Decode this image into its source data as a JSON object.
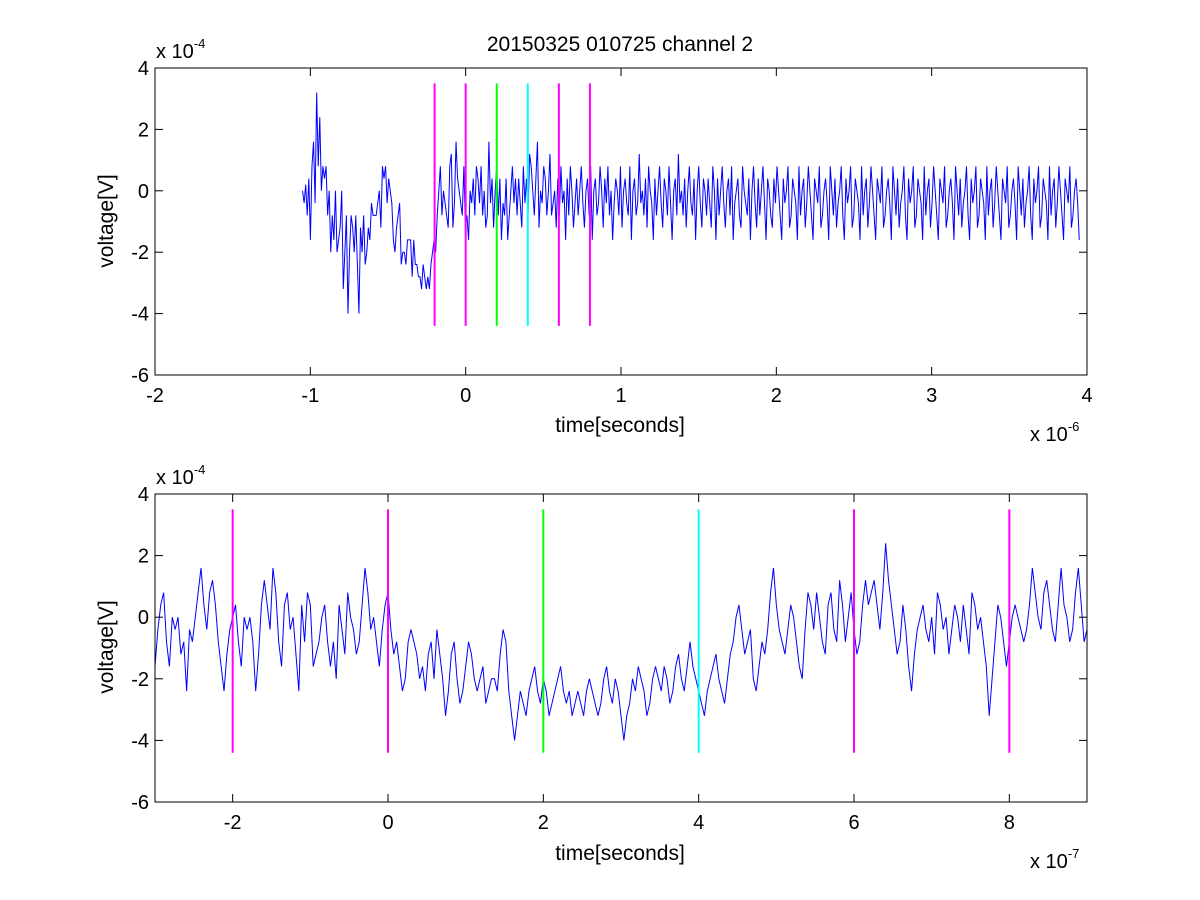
{
  "title": "20150325 010725 channel 2",
  "colors": {
    "trace": "#0000ff",
    "magenta": "#ff00ff",
    "green": "#00ff00",
    "cyan": "#00ffff"
  },
  "chart_data": [
    {
      "type": "line",
      "xlabel": "time[seconds]",
      "ylabel": "voltage[V]",
      "x_multiplier": "x 10",
      "x_exponent": "-6",
      "y_multiplier": "x 10",
      "y_exponent": "-4",
      "xlim": [
        -2,
        4
      ],
      "ylim": [
        -6,
        4
      ],
      "xticks": [
        "-2",
        "-1",
        "0",
        "1",
        "2",
        "3",
        "4"
      ],
      "yticks": [
        "4",
        "2",
        "0",
        "-2",
        "-4",
        "-6"
      ],
      "grid": false,
      "series": [
        {
          "color": "#0000ff",
          "x_start": -1.05,
          "x_end": 3.95,
          "x_step": 0.01,
          "values": [
            0,
            -0.4,
            0.2,
            -0.8,
            0.4,
            -1.6,
            0.8,
            1.6,
            -0.4,
            3.2,
            0.8,
            2.4,
            0,
            0.8,
            0.4,
            0.8,
            -0.8,
            0,
            -2,
            -0.8,
            -1.6,
            0,
            -2,
            -1.6,
            -1.2,
            0,
            -3.2,
            -2,
            -0.8,
            -4,
            -2,
            -0.8,
            -1.2,
            -2,
            -0.8,
            -2.4,
            -4,
            -1.2,
            -2,
            -0.8,
            -2.4,
            -2,
            -1.2,
            -1.6,
            -0.4,
            -0.8,
            -0.8,
            -0.8,
            -0.4,
            0,
            -1.2,
            0.8,
            0.4,
            0.8,
            -0.4,
            0.4,
            0,
            -0.4,
            -1.6,
            -2,
            -1.2,
            -0.8,
            -0.4,
            -2.4,
            -2,
            -2,
            -2.4,
            -1.6,
            -1.6,
            -1.6,
            -2.8,
            -1.6,
            -2.4,
            -2.4,
            -2.8,
            -2.8,
            -3.2,
            -2.4,
            -2.8,
            -3.2,
            -2.8,
            -3.2,
            -2.4,
            -2,
            -1.6,
            -2,
            -0.8,
            0,
            0.8,
            -0.8,
            0,
            -0.4,
            -0.8,
            -1.2,
            0.8,
            1.2,
            -1.2,
            -0.4,
            1.6,
            0.4,
            0,
            -0.4,
            -0.8,
            0.8,
            -1.2,
            -0.8,
            -1.6,
            0,
            -0.4,
            0.4,
            -0.8,
            0.8,
            0.4,
            -0.4,
            0.8,
            -0.8,
            0,
            -1.2,
            -0.8,
            1.6,
            -0.4,
            0.4,
            -1.2,
            0,
            0.8,
            -0.8,
            0.4,
            -1.6,
            -0.4,
            -0.8,
            0.4,
            -1.6,
            -0.8,
            0,
            0.8,
            -0.4,
            0.4,
            -0.8,
            0.4,
            -0.4,
            -1.2,
            0.8,
            -0.4,
            0.4,
            -0.8,
            1.2,
            0.8,
            0,
            -0.8,
            0.4,
            1.6,
            -1.2,
            0,
            -0.4,
            0.8,
            0.4,
            -0.8,
            0,
            1.2,
            -0.8,
            -0.4,
            0,
            -1.2,
            0.4,
            -0.8,
            0.8,
            -0.4,
            0,
            -1.6,
            0.4,
            -0.8,
            0.8,
            0,
            -1.2,
            -0.4,
            0.4,
            -0.8,
            0,
            0.8,
            -0.4,
            -1.2,
            0,
            0.4,
            -0.8,
            0.8,
            -1.6,
            0,
            0.4,
            -0.8,
            -0.4,
            0.8,
            0,
            -1.2,
            0.4,
            -0.4,
            0.8,
            -0.8,
            0,
            -1.6,
            -0.4,
            0.4,
            0,
            -0.8,
            0.8,
            -1.2,
            0,
            0.4,
            -0.4,
            -0.8,
            0.8,
            -1.6,
            0,
            0.4,
            -0.8,
            -0.4,
            1.2,
            -0.4,
            0,
            -0.8,
            0.4,
            -1.2,
            0.8,
            0,
            -0.4,
            -1.6,
            0.4,
            -0.8,
            0,
            0.8,
            -0.4,
            -1.2,
            0.4,
            0,
            -0.8,
            0.8,
            -0.4,
            -1.6,
            0,
            0.4,
            -0.8,
            1.2,
            -0.4,
            0,
            -0.8,
            0.4,
            -1.2,
            0,
            0.8,
            -0.4,
            -0.8,
            0.4,
            -1.6,
            0,
            0.8,
            -0.4,
            -1.2,
            0.4,
            0,
            -0.8,
            0.4,
            -0.4,
            -1.2,
            0.8,
            0,
            -1.6,
            0.4,
            -0.8,
            0,
            0.8,
            -0.4,
            -1.2,
            0,
            0.4,
            -0.8,
            0.8,
            -1.6,
            -0.4,
            0,
            0.4,
            -0.8,
            -1.2,
            0.8,
            0,
            -0.4,
            -0.8,
            0.4,
            -1.6,
            0,
            0.8,
            -0.4,
            -1.2,
            0.4,
            -0.8,
            0,
            0.8,
            -0.4,
            -1.6,
            0.4,
            0,
            -0.8,
            -1.2,
            0.4,
            -0.4,
            0.8,
            0,
            -0.8,
            -1.6,
            0.4,
            -0.4,
            0,
            0.8,
            -1.2,
            -0.8,
            0.4,
            0,
            -0.4,
            -1.6,
            0.8,
            -0.8,
            0,
            0.4,
            -1.2,
            -0.4,
            0.8,
            0,
            -0.8,
            -1.6,
            0.4,
            0,
            -0.4,
            0.8,
            -1.2,
            -0.8,
            0,
            0.4,
            -0.4,
            -1.6,
            0.8,
            0,
            -0.8,
            0.4,
            -1.2,
            -0.4,
            0,
            0.8,
            -0.8,
            -1.6,
            0.4,
            -0.4,
            0,
            0.8,
            -1.2,
            -0.8,
            0.4,
            0,
            -0.4,
            -1.6,
            0.8,
            -0.8,
            0,
            0.4,
            -1.2,
            -0.4,
            0.8,
            0,
            -0.8,
            -1.6,
            0.4,
            0,
            -0.4,
            0.8,
            -1.2,
            -0.8,
            0,
            0.4,
            -0.4,
            -1.6,
            0.8,
            0,
            -0.8,
            0.4,
            -1.2,
            -0.4,
            0,
            0.8,
            -0.8,
            -1.6,
            0.4,
            -0.4,
            0,
            0.8,
            -1.2,
            -0.8,
            0.4,
            0,
            -0.4,
            -1.6,
            0.8,
            -0.8,
            0,
            0.4,
            -1.2,
            -0.4,
            0.8,
            0,
            -0.8,
            -1.6,
            0.4,
            0,
            -0.4,
            0.8,
            -1.2,
            -0.8,
            0,
            0.4,
            -0.4,
            -1.6,
            0.8,
            0,
            -0.8,
            0.4,
            -1.2,
            -0.4,
            0,
            0.8,
            -0.8,
            -1.6,
            0.4,
            -0.4,
            0,
            0.8,
            -1.2,
            -0.8,
            0.4,
            0,
            -0.4,
            -1.6,
            0.8,
            -0.8,
            0,
            0.4,
            -1.2,
            -0.4,
            0.8,
            0,
            -0.8,
            -1.6,
            0.4,
            0,
            -0.4,
            0.8,
            -1.2,
            -0.8,
            0,
            0.4,
            -0.4,
            -1.6,
            0.8,
            0,
            -0.8,
            0.4,
            -1.2,
            -0.4,
            0,
            0.8,
            -0.8,
            -1.6,
            0.4,
            -0.4,
            0,
            0.8,
            -1.2,
            -0.8,
            0.4,
            0,
            -0.4,
            -1.6,
            0.8,
            -0.8,
            0,
            0.4,
            -1.2,
            -0.4,
            0.8,
            0,
            -0.8,
            -1.6,
            0.4,
            0,
            -0.4,
            0.8,
            -1.2,
            -0.8,
            0,
            0.4,
            -0.4,
            -1.6
          ]
        }
      ],
      "markers": [
        {
          "x": -0.2,
          "y_range": [
            -4.4,
            3.5
          ],
          "color": "#ff00ff"
        },
        {
          "x": 0.0,
          "y_range": [
            -4.4,
            3.5
          ],
          "color": "#ff00ff"
        },
        {
          "x": 0.2,
          "y_range": [
            -4.4,
            3.5
          ],
          "color": "#00ff00"
        },
        {
          "x": 0.4,
          "y_range": [
            -4.4,
            3.5
          ],
          "color": "#00ffff"
        },
        {
          "x": 0.6,
          "y_range": [
            -4.4,
            3.5
          ],
          "color": "#ff00ff"
        },
        {
          "x": 0.8,
          "y_range": [
            -4.4,
            3.5
          ],
          "color": "#ff00ff"
        }
      ]
    },
    {
      "type": "line",
      "xlabel": "time[seconds]",
      "ylabel": "voltage[V]",
      "x_multiplier": "x 10",
      "x_exponent": "-7",
      "y_multiplier": "x 10",
      "y_exponent": "-4",
      "xlim": [
        -3,
        9
      ],
      "ylim": [
        -6,
        4
      ],
      "xticks": [
        "-2",
        "0",
        "2",
        "4",
        "6",
        "8"
      ],
      "yticks": [
        "4",
        "2",
        "0",
        "-2",
        "-4",
        "-6"
      ],
      "grid": false,
      "series": [
        {
          "color": "#0000ff",
          "x_start": -3,
          "x_end": 9,
          "x_step": 0.04,
          "values": [
            -1.6,
            -0.4,
            0.4,
            0.8,
            -0.8,
            -1.6,
            0,
            -0.4,
            0,
            -1.2,
            -0.8,
            -2.4,
            -0.4,
            -0.8,
            0,
            0.8,
            1.6,
            0.4,
            -0.4,
            0.8,
            1.2,
            0.4,
            -0.8,
            -1.6,
            -2.4,
            -1.2,
            -0.4,
            0,
            0.4,
            -0.8,
            -1.6,
            0,
            -0.4,
            0,
            -0.8,
            -2.4,
            -1.2,
            0.4,
            1.2,
            0.4,
            -0.4,
            1.6,
            0.8,
            -0.8,
            -1.6,
            0.4,
            0.8,
            -0.4,
            0,
            -1.2,
            -2.4,
            0.4,
            -0.8,
            0.8,
            0.4,
            -1.6,
            -1.2,
            -0.8,
            0,
            0.4,
            -0.8,
            -1.6,
            -0.8,
            -2,
            0.4,
            -0.4,
            -1.2,
            0.8,
            0,
            -0.4,
            -1.2,
            -0.8,
            0.4,
            1.6,
            0.8,
            -0.4,
            0,
            -0.8,
            -1.6,
            -0.4,
            0.4,
            0.8,
            -0.4,
            -1.2,
            -0.8,
            -1.6,
            -2.4,
            -2,
            -0.8,
            -0.4,
            -0.8,
            -1.2,
            -2,
            -1.6,
            -2.4,
            -1.2,
            -0.8,
            -2,
            -0.4,
            -1.2,
            -2,
            -3.2,
            -2.4,
            -1.2,
            -0.8,
            -2,
            -2.8,
            -2.4,
            -1.6,
            -0.8,
            -1.2,
            -2,
            -2.4,
            -2,
            -1.6,
            -2.8,
            -2.4,
            -2,
            -2,
            -2.4,
            -1.2,
            -0.4,
            -0.8,
            -2.4,
            -3.2,
            -4,
            -3.2,
            -2.4,
            -2.8,
            -3.2,
            -2.4,
            -2,
            -1.6,
            -2.4,
            -2.8,
            -2,
            -2.4,
            -3.2,
            -2.8,
            -2.4,
            -2,
            -1.6,
            -2.4,
            -2.8,
            -2.4,
            -3.2,
            -2.8,
            -2.4,
            -2.8,
            -3.2,
            -2.4,
            -2,
            -2.4,
            -2.8,
            -3.2,
            -2.8,
            -2,
            -1.6,
            -2.4,
            -2.8,
            -2,
            -2.4,
            -3.2,
            -4,
            -3.2,
            -2.8,
            -2,
            -2.4,
            -1.6,
            -2,
            -2.4,
            -3.2,
            -2.8,
            -2,
            -1.6,
            -2,
            -2.4,
            -1.6,
            -2,
            -2.8,
            -2.4,
            -1.6,
            -1.2,
            -2,
            -2.4,
            -1.6,
            -0.8,
            -1.6,
            -2,
            -2.4,
            -2.8,
            -3.2,
            -2.4,
            -2,
            -1.6,
            -1.2,
            -2,
            -2.4,
            -2.8,
            -2,
            -1.2,
            -0.8,
            0,
            0.4,
            -0.4,
            -1.2,
            -0.8,
            -0.4,
            -2,
            -2.4,
            -1.6,
            -0.8,
            -1.2,
            -0.4,
            0.8,
            1.6,
            0.4,
            -0.4,
            -0.8,
            -1.2,
            -0.4,
            0.4,
            0,
            -0.8,
            -1.6,
            -2,
            -0.4,
            0.8,
            0.4,
            -0.4,
            0.8,
            0,
            -0.8,
            -1.2,
            0.4,
            0.8,
            -0.4,
            -0.8,
            1.2,
            0.4,
            -0.8,
            0,
            0.8,
            -0.4,
            -1.2,
            -0.8,
            0.4,
            1.2,
            0.4,
            0.8,
            1.2,
            0.4,
            -0.4,
            0.8,
            2.4,
            1.2,
            0.4,
            -0.4,
            -1.2,
            -0.8,
            0.4,
            -0.4,
            -1.6,
            -2.4,
            -1.2,
            -0.4,
            0,
            0.4,
            -0.4,
            -0.8,
            0,
            -1.2,
            0.8,
            0.4,
            -0.4,
            0,
            -1.2,
            -0.4,
            0.4,
            0,
            -0.8,
            0.4,
            -0.4,
            -1.2,
            0.8,
            0.4,
            -0.4,
            0,
            -0.8,
            -1.6,
            -3.2,
            -2,
            -0.8,
            0.4,
            0,
            -0.8,
            -1.6,
            -0.8,
            0,
            0.4,
            0,
            -0.4,
            -0.8,
            -0.4,
            0.4,
            1.6,
            0.8,
            0,
            -0.4,
            0.8,
            1.2,
            0.4,
            -0.4,
            -0.8,
            0.4,
            1.6,
            0.4,
            0,
            -0.8,
            -0.4,
            0.8,
            1.6,
            0.4,
            -0.8,
            -0.4
          ]
        }
      ],
      "markers": [
        {
          "x": -2,
          "y_range": [
            -4.4,
            3.5
          ],
          "color": "#ff00ff"
        },
        {
          "x": 0,
          "y_range": [
            -4.4,
            3.5
          ],
          "color": "#ff00ff"
        },
        {
          "x": 2,
          "y_range": [
            -4.4,
            3.5
          ],
          "color": "#00ff00"
        },
        {
          "x": 4,
          "y_range": [
            -4.4,
            3.5
          ],
          "color": "#00ffff"
        },
        {
          "x": 6,
          "y_range": [
            -4.4,
            3.5
          ],
          "color": "#ff00ff"
        },
        {
          "x": 8,
          "y_range": [
            -4.4,
            3.5
          ],
          "color": "#ff00ff"
        }
      ]
    }
  ]
}
